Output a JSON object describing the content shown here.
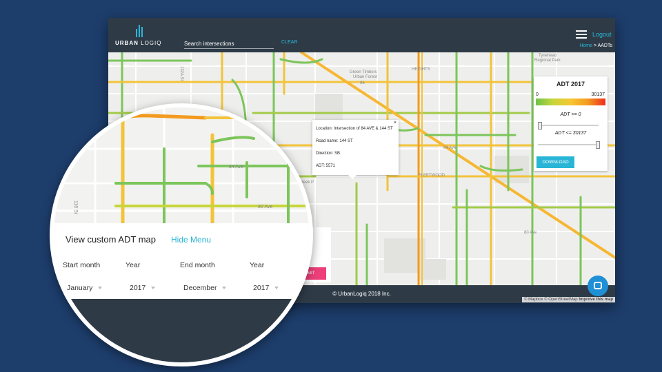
{
  "header": {
    "logo_text_bold": "URBAN",
    "logo_text_light": "LOGIQ",
    "search_placeholder": "Search intersections",
    "clear_label": "CLEAR",
    "logout_label": "Logout",
    "breadcrumb_home": "Home",
    "breadcrumb_sep": " > ",
    "breadcrumb_current": "AADTs"
  },
  "legend": {
    "title": "ADT 2017",
    "min": "0",
    "max": "30137",
    "filter_min_label": "ADT >= 0",
    "filter_max_label": "ADT <= 30137",
    "min_slider_value": 0,
    "max_slider_value": 30137,
    "download_label": "DOWNLOAD",
    "gradient_colors": [
      "#6cc24a",
      "#c7d63a",
      "#f7c634",
      "#f39a1f",
      "#ee2b1e"
    ]
  },
  "popup": {
    "location": "Location: Intersection of 84 AVE & 144 ST",
    "road": "Road name: 144 ST",
    "direction": "Direction: SB",
    "adt": "ADT: 5571",
    "close": "×"
  },
  "map_labels": {
    "heights": "HEIGHTS",
    "green_timbers": "Green Timbers",
    "urban_forest": "Urban Forest",
    "tynehead": "Tynehead",
    "regional_park": "Regional Park",
    "fleetwood": "FLEETWOOD",
    "bear_creek": "Bear Creek P",
    "ave_84": "84 Ave",
    "ave_80": "80 Ave",
    "ave_96": "96",
    "st_132": "132A St",
    "st_116": "116 St"
  },
  "custom_map": {
    "title": "View custom ADT map",
    "hide_menu": "Hide Menu",
    "start_month_label": "Start month",
    "start_year_label": "Year",
    "end_month_label": "End month",
    "end_year_label": "Year",
    "start_month": "January",
    "start_year": "2017",
    "end_month": "December",
    "end_year": "2017",
    "submit_label": "SUBMIT"
  },
  "footer": {
    "copyright": "© UrbanLogiq 2018 Inc.",
    "attribution_prefix": "© Mapbox © OpenStreetMap ",
    "attribution_link": "Improve this map"
  },
  "colors": {
    "accent": "#29b6d6",
    "submit": "#ee3f7a",
    "header": "#2e3b47",
    "background": "#1d3d6b",
    "road_green": "#7cc55b",
    "road_yellow": "#f3c33a",
    "road_orange": "#f39a1f"
  }
}
